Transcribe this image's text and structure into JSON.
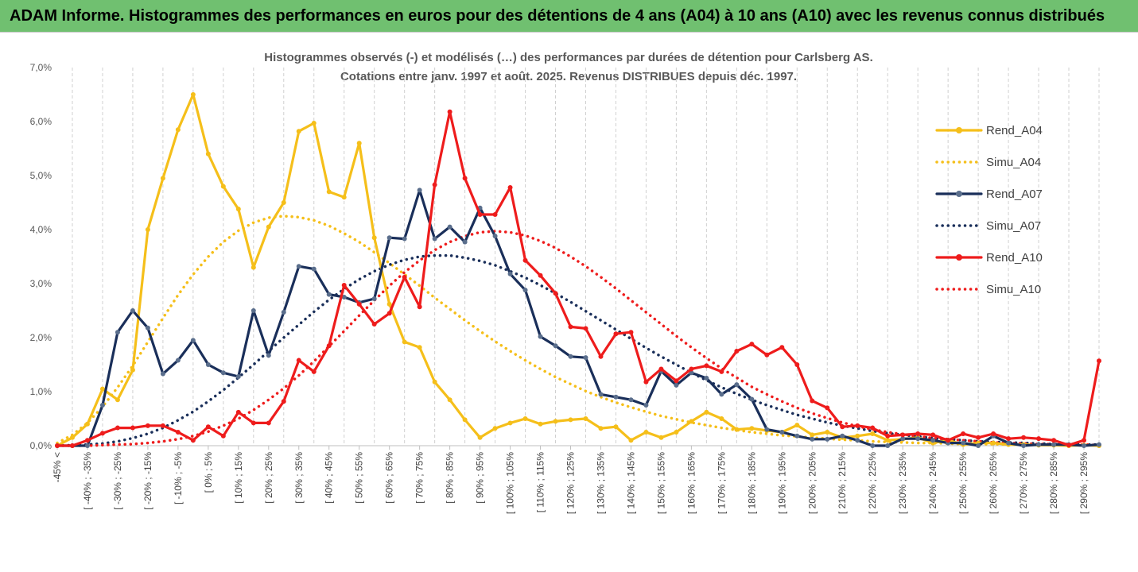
{
  "banner": {
    "title": "ADAM Informe. Histogrammes des performances en euros pour des détentions de 4 ans (A04) à 10 ans (A10) avec les revenus connus distribués"
  },
  "colors": {
    "banner_bg": "#70c070",
    "A04": "#f5bf1a",
    "A07": "#1a2f5a",
    "A10": "#ee1c1c",
    "marker_A07": "#5a6e8c"
  },
  "chart_data": {
    "type": "line",
    "title_lines": [
      "Histogrammes observés (-) et modélisés (…) des performances par durées de détention pour Carlsberg AS.",
      "Cotations entre janv. 1997 et août. 2025. Revenus DISTRIBUES depuis déc. 1997."
    ],
    "ylim": [
      0,
      7
    ],
    "yticks": [
      "0,0%",
      "1,0%",
      "2,0%",
      "3,0%",
      "4,0%",
      "5,0%",
      "6,0%",
      "7,0%"
    ],
    "grid": "vertical dashed",
    "legend_position": "right",
    "x_count": 70,
    "x_tick_labels": [
      "-45% <",
      "[ -40% ; -35%",
      "[ -30% ; -25%",
      "[ -20% ; -15%",
      "[ -10% ; -5%",
      "[ 0% ; 5%",
      "[ 10% ; 15%",
      "[ 20% ; 25%",
      "[ 30% ; 35%",
      "[ 40% ; 45%",
      "[ 50% ; 55%",
      "[ 60% ; 65%",
      "[ 70% ; 75%",
      "[ 80% ; 85%",
      "[ 90% ; 95%",
      "[ 100% ; 105%",
      "[ 110% ; 115%",
      "[ 120% ; 125%",
      "[ 130% ; 135%",
      "[ 140% ; 145%",
      "[ 150% ; 155%",
      "[ 160% ; 165%",
      "[ 170% ; 175%",
      "[ 180% ; 185%",
      "[ 190% ; 195%",
      "[ 200% ; 205%",
      "[ 210% ; 215%",
      "[ 220% ; 225%",
      "[ 230% ; 235%",
      "[ 240% ; 245%",
      "[ 250% ; 255%",
      "[ 260% ; 265%",
      "[ 270% ; 275%",
      "[ 280% ; 285%",
      "[ 290% ; 295%"
    ],
    "series": [
      {
        "name": "Rend_A04",
        "style": "solid",
        "color": "#f5bf1a",
        "marker": "circle",
        "values": [
          0,
          0.15,
          0.4,
          1.05,
          0.85,
          1.4,
          4.0,
          4.95,
          5.85,
          6.5,
          5.4,
          4.8,
          4.38,
          3.3,
          4.05,
          4.5,
          5.82,
          5.97,
          4.7,
          4.6,
          5.6,
          3.85,
          2.62,
          1.92,
          1.82,
          1.18,
          0.85,
          0.48,
          0.15,
          0.32,
          0.42,
          0.5,
          0.4,
          0.45,
          0.48,
          0.5,
          0.32,
          0.35,
          0.1,
          0.25,
          0.15,
          0.25,
          0.45,
          0.62,
          0.5,
          0.3,
          0.32,
          0.28,
          0.25,
          0.38,
          0.2,
          0.25,
          0.15,
          0.18,
          0.22,
          0.1,
          0.12,
          0.15,
          0.05,
          0.1,
          0.02,
          0.05,
          0.05,
          0.02,
          0.02,
          0.01,
          0.01,
          0,
          0.01,
          0
        ]
      },
      {
        "name": "Simu_A04",
        "style": "dotted",
        "color": "#f5bf1a",
        "values": [
          0.05,
          0.2,
          0.42,
          0.72,
          1.08,
          1.48,
          1.92,
          2.36,
          2.79,
          3.17,
          3.5,
          3.77,
          3.98,
          4.13,
          4.22,
          4.25,
          4.23,
          4.17,
          4.07,
          3.93,
          3.77,
          3.58,
          3.38,
          3.17,
          2.96,
          2.74,
          2.53,
          2.32,
          2.12,
          1.93,
          1.75,
          1.58,
          1.42,
          1.27,
          1.14,
          1.01,
          0.9,
          0.8,
          0.71,
          0.63,
          0.55,
          0.49,
          0.43,
          0.38,
          0.33,
          0.29,
          0.25,
          0.22,
          0.19,
          0.17,
          0.15,
          0.13,
          0.11,
          0.1,
          0.08,
          0.07,
          0.06,
          0.05,
          0.05,
          0.04,
          0.03,
          0.03,
          0.03,
          0.02,
          0.02,
          0.02,
          0.01,
          0.01,
          0.01,
          0.01
        ]
      },
      {
        "name": "Rend_A07",
        "style": "solid",
        "color": "#1a2f5a",
        "marker": "circle",
        "values": [
          0,
          0,
          0,
          0.75,
          2.1,
          2.5,
          2.18,
          1.33,
          1.58,
          1.95,
          1.5,
          1.35,
          1.28,
          2.5,
          1.67,
          2.47,
          3.32,
          3.27,
          2.8,
          2.75,
          2.65,
          2.72,
          3.85,
          3.83,
          4.73,
          3.83,
          4.05,
          3.77,
          4.4,
          3.88,
          3.18,
          2.88,
          2.02,
          1.85,
          1.65,
          1.63,
          0.95,
          0.9,
          0.85,
          0.75,
          1.38,
          1.12,
          1.35,
          1.25,
          0.95,
          1.13,
          0.86,
          0.3,
          0.25,
          0.18,
          0.12,
          0.12,
          0.18,
          0.1,
          0,
          0,
          0.13,
          0.13,
          0.1,
          0.05,
          0.05,
          0,
          0.18,
          0.05,
          0,
          0.02,
          0.02,
          0.02,
          0,
          0.02
        ]
      },
      {
        "name": "Simu_A07",
        "style": "dotted",
        "color": "#1a2f5a",
        "values": [
          0,
          0.01,
          0.02,
          0.04,
          0.08,
          0.14,
          0.22,
          0.33,
          0.47,
          0.63,
          0.82,
          1.03,
          1.26,
          1.5,
          1.75,
          2.0,
          2.24,
          2.48,
          2.7,
          2.9,
          3.08,
          3.23,
          3.35,
          3.44,
          3.5,
          3.52,
          3.52,
          3.48,
          3.42,
          3.34,
          3.23,
          3.11,
          2.97,
          2.82,
          2.66,
          2.49,
          2.32,
          2.15,
          1.98,
          1.81,
          1.65,
          1.5,
          1.35,
          1.21,
          1.08,
          0.96,
          0.85,
          0.75,
          0.66,
          0.57,
          0.5,
          0.43,
          0.37,
          0.32,
          0.27,
          0.23,
          0.2,
          0.17,
          0.14,
          0.12,
          0.1,
          0.08,
          0.07,
          0.06,
          0.05,
          0.04,
          0.03,
          0.03,
          0.02,
          0.02
        ]
      },
      {
        "name": "Rend_A10",
        "style": "solid",
        "color": "#ee1c1c",
        "marker": "circle",
        "values": [
          0,
          0,
          0.1,
          0.23,
          0.33,
          0.33,
          0.37,
          0.37,
          0.25,
          0.1,
          0.35,
          0.18,
          0.62,
          0.42,
          0.42,
          0.82,
          1.58,
          1.37,
          1.85,
          2.97,
          2.62,
          2.25,
          2.45,
          3.12,
          2.57,
          4.83,
          6.18,
          4.95,
          4.28,
          4.28,
          4.78,
          3.43,
          3.15,
          2.82,
          2.2,
          2.17,
          1.65,
          2.07,
          2.1,
          1.18,
          1.42,
          1.2,
          1.42,
          1.48,
          1.37,
          1.75,
          1.88,
          1.68,
          1.82,
          1.5,
          0.83,
          0.7,
          0.35,
          0.37,
          0.33,
          0.18,
          0.2,
          0.22,
          0.2,
          0.1,
          0.22,
          0.15,
          0.22,
          0.13,
          0.15,
          0.13,
          0.1,
          0.01,
          0.1,
          1.57
        ]
      },
      {
        "name": "Simu_A10",
        "style": "dotted",
        "color": "#ee1c1c",
        "values": [
          0,
          0,
          0,
          0.01,
          0.02,
          0.03,
          0.05,
          0.08,
          0.12,
          0.18,
          0.26,
          0.37,
          0.5,
          0.66,
          0.85,
          1.06,
          1.3,
          1.56,
          1.84,
          2.12,
          2.41,
          2.69,
          2.96,
          3.21,
          3.43,
          3.62,
          3.77,
          3.88,
          3.95,
          3.97,
          3.95,
          3.89,
          3.79,
          3.66,
          3.5,
          3.32,
          3.12,
          2.91,
          2.69,
          2.47,
          2.25,
          2.03,
          1.82,
          1.62,
          1.43,
          1.26,
          1.09,
          0.95,
          0.82,
          0.7,
          0.6,
          0.51,
          0.43,
          0.36,
          0.3,
          0.25,
          0.21,
          0.17,
          0.14,
          0.12,
          0.1,
          0.08,
          0.06,
          0.05,
          0.04,
          0.03,
          0.03,
          0.02,
          0.02,
          0.01
        ]
      }
    ]
  }
}
